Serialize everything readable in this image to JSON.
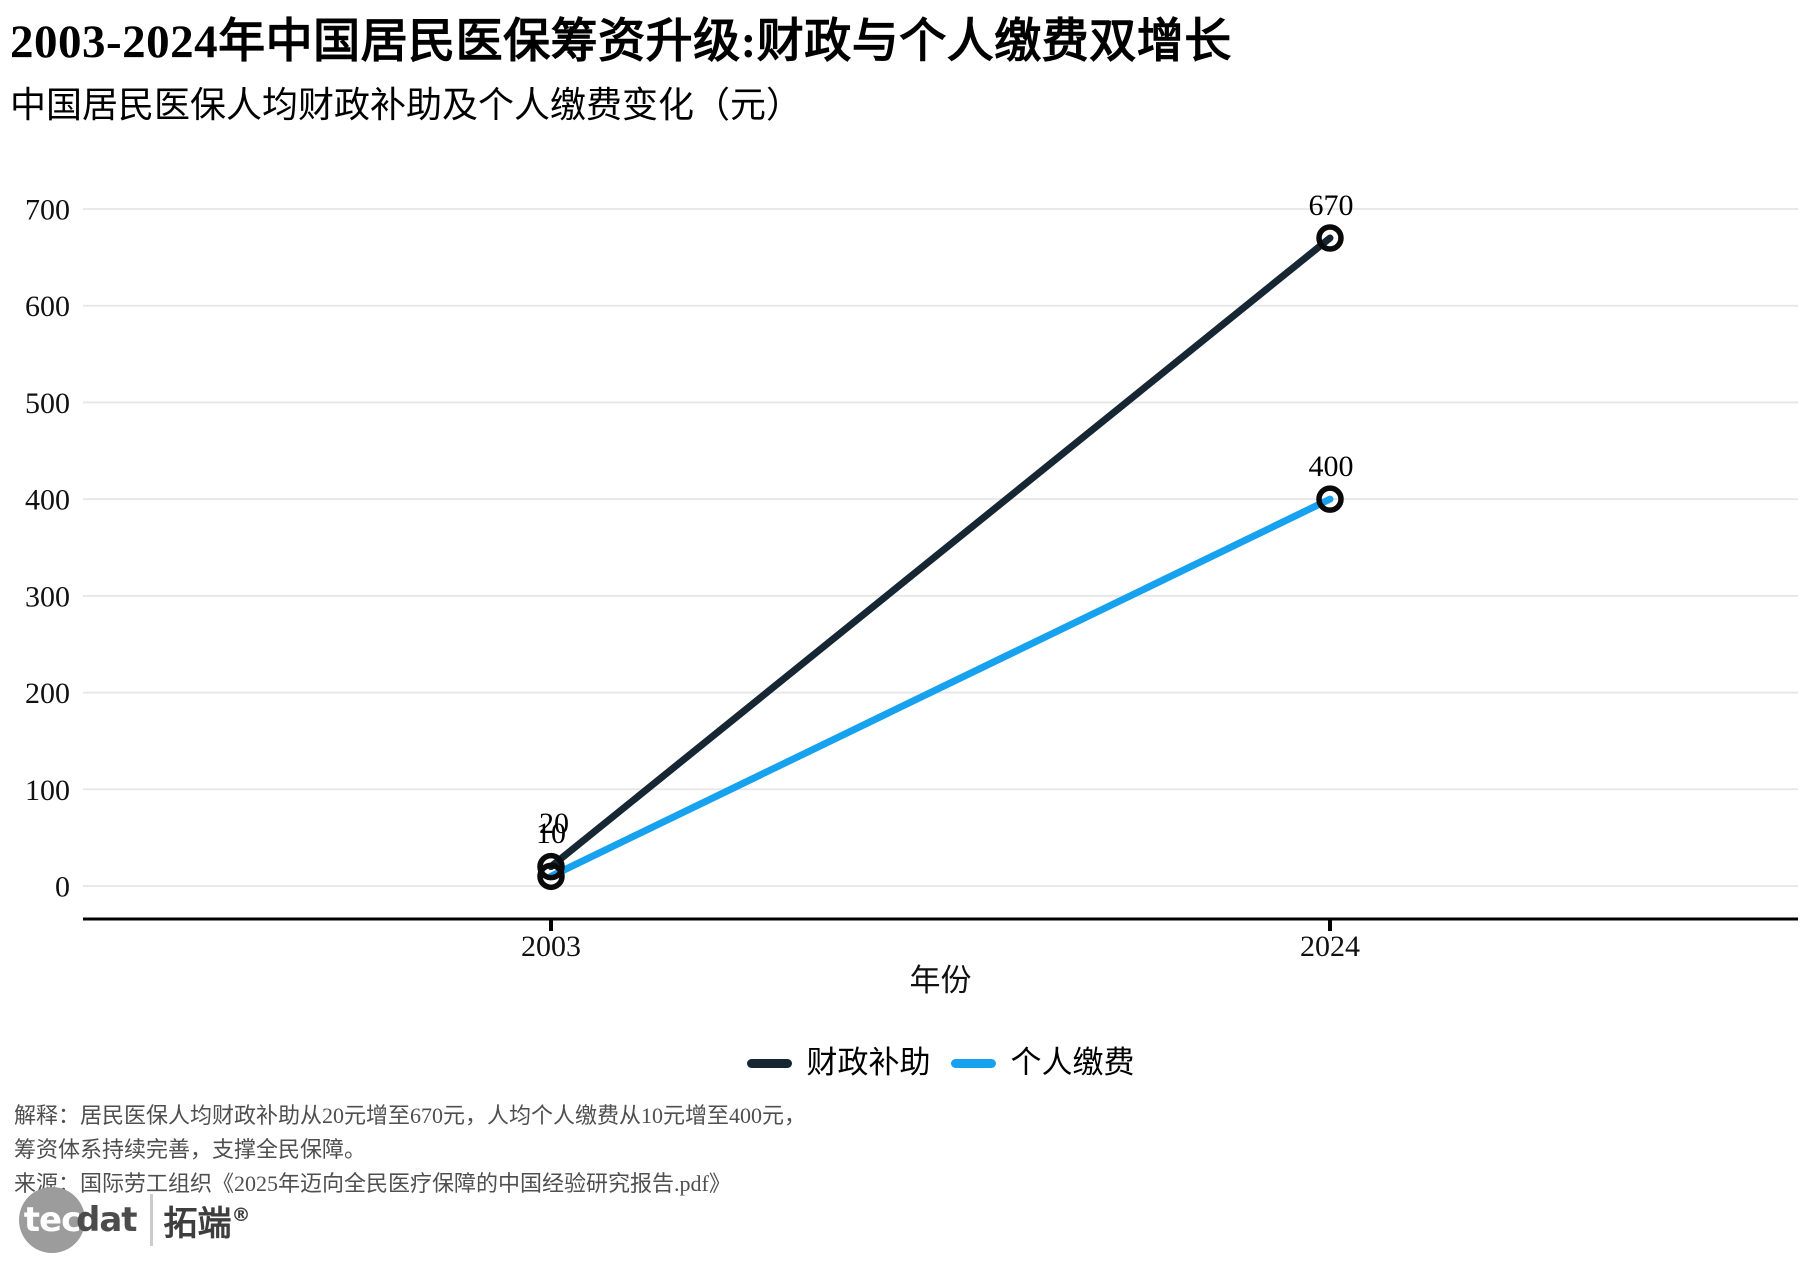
{
  "header": {
    "title": "2003-2024年中国居民医保筹资升级:财政与个人缴费双增长",
    "subtitle": "中国居民医保人均财政补助及个人缴费变化（元）"
  },
  "chart_data": {
    "type": "line",
    "x": [
      "2003",
      "2024"
    ],
    "xlabel": "年份",
    "ylim": [
      0,
      700
    ],
    "yticks": [
      0,
      100,
      200,
      300,
      400,
      500,
      600,
      700
    ],
    "grid": "horizontal",
    "legend_position": "bottom",
    "marker": "open-circle",
    "marker_stroke": "#0a0a0a",
    "axis_color": "#000000",
    "gridline_color": "#e6e6e6",
    "series": [
      {
        "name": "财政补助",
        "values": [
          20,
          670
        ],
        "color": "#172633",
        "point_labels": [
          "20",
          "670"
        ]
      },
      {
        "name": "个人缴费",
        "values": [
          10,
          400
        ],
        "color": "#17a2ef",
        "point_labels": [
          "10",
          "400"
        ]
      }
    ]
  },
  "footer": {
    "explain_line1": "解释：居民医保人均财政补助从20元增至670元，人均个人缴费从10元增至400元，",
    "explain_line2": "筹资体系持续完善，支撑全民保障。",
    "source_line": "来源：国际劳工组织《2025年迈向全民医疗保障的中国经验研究报告.pdf》"
  },
  "logo": {
    "tec": "tec",
    "dat": "dat",
    "cn_name": "拓端",
    "registered": "®"
  }
}
